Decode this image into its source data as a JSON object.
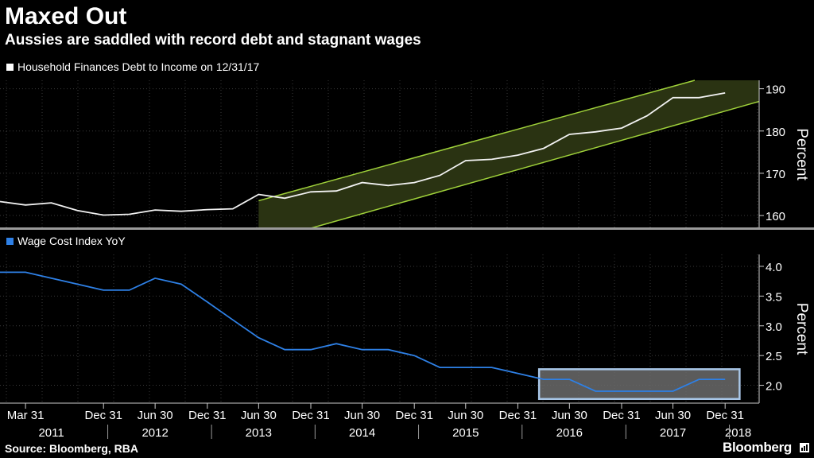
{
  "title": "Maxed Out",
  "subtitle": "Aussies are saddled with record debt and stagnant wages",
  "source": "Source: Bloomberg, RBA",
  "logo": "Bloomberg",
  "colors": {
    "background": "#000000",
    "debt_line": "#f2f2f2",
    "wage_line": "#2e80e6",
    "channel": "#9fd13a",
    "channel_fill": "#2a3312",
    "highlight_box": "#a9c7e8",
    "highlight_fill": "#6b6b6b",
    "grid": "#3a3a3a"
  },
  "x_axis": {
    "ticks": [
      {
        "date": "2011-03-31",
        "label": "Mar 31"
      },
      {
        "date": "2011-12-31",
        "label": "Dec 31"
      },
      {
        "date": "2012-06-30",
        "label": "Jun 30"
      },
      {
        "date": "2012-12-31",
        "label": "Dec 31"
      },
      {
        "date": "2013-06-30",
        "label": "Jun 30"
      },
      {
        "date": "2013-12-31",
        "label": "Dec 31"
      },
      {
        "date": "2014-06-30",
        "label": "Jun 30"
      },
      {
        "date": "2014-12-31",
        "label": "Dec 31"
      },
      {
        "date": "2015-06-30",
        "label": "Jun 30"
      },
      {
        "date": "2015-12-31",
        "label": "Dec 31"
      },
      {
        "date": "2016-06-30",
        "label": "Jun 30"
      },
      {
        "date": "2016-12-31",
        "label": "Dec 31"
      },
      {
        "date": "2017-06-30",
        "label": "Jun 30"
      },
      {
        "date": "2017-12-31",
        "label": "Dec 31"
      }
    ],
    "years": [
      {
        "date": "2011-06-30",
        "label": "2011"
      },
      {
        "date": "2012-06-30",
        "label": "2012"
      },
      {
        "date": "2013-06-30",
        "label": "2013"
      },
      {
        "date": "2014-06-30",
        "label": "2014"
      },
      {
        "date": "2015-06-30",
        "label": "2015"
      },
      {
        "date": "2016-06-30",
        "label": "2016"
      },
      {
        "date": "2017-06-30",
        "label": "2017"
      },
      {
        "date": "2018-02-15",
        "label": "2018"
      }
    ],
    "range": [
      "2010-12-31",
      "2018-04-30"
    ]
  },
  "chart_data": [
    {
      "type": "line",
      "legend": "Household Finances Debt to Income on 12/31/17",
      "ylabel": "Percent",
      "ylim": [
        157,
        192
      ],
      "yticks": [
        160,
        170,
        180,
        190
      ],
      "x": [
        "2010-12-31",
        "2011-03-31",
        "2011-06-30",
        "2011-09-30",
        "2011-12-31",
        "2012-03-31",
        "2012-06-30",
        "2012-09-30",
        "2012-12-31",
        "2013-03-31",
        "2013-06-30",
        "2013-09-30",
        "2013-12-31",
        "2014-03-31",
        "2014-06-30",
        "2014-09-30",
        "2014-12-31",
        "2015-03-31",
        "2015-06-30",
        "2015-09-30",
        "2015-12-31",
        "2016-03-31",
        "2016-06-30",
        "2016-09-30",
        "2016-12-31",
        "2017-03-31",
        "2017-06-30",
        "2017-09-30"
      ],
      "values": [
        163.3,
        162.5,
        163.0,
        161.2,
        160.1,
        160.3,
        161.3,
        161.0,
        161.4,
        161.6,
        165.0,
        164.1,
        165.6,
        165.8,
        167.8,
        167.1,
        167.8,
        169.5,
        173.0,
        173.3,
        174.3,
        175.9,
        179.2,
        179.8,
        180.7,
        183.6,
        187.9,
        187.9
      ],
      "last_point": {
        "x": "2017-12-31",
        "y": 189.0
      },
      "channel": {
        "upper": [
          {
            "x": "2013-06-30",
            "y": 163.5
          },
          {
            "x": "2017-09-15",
            "y": 192
          }
        ],
        "lower": [
          {
            "x": "2013-12-31",
            "y": 157
          },
          {
            "x": "2018-04-30",
            "y": 187.0
          }
        ],
        "shade_start": "2013-06-30"
      }
    },
    {
      "type": "line",
      "legend": "Wage Cost Index YoY",
      "ylabel": "Percent",
      "ylim": [
        1.7,
        4.2
      ],
      "yticks": [
        "4.0",
        "3.5",
        "3.0",
        "2.5",
        "2.0"
      ],
      "x": [
        "2010-12-31",
        "2011-03-31",
        "2011-06-30",
        "2011-09-30",
        "2011-12-31",
        "2012-03-31",
        "2012-06-30",
        "2012-09-30",
        "2012-12-31",
        "2013-03-31",
        "2013-06-30",
        "2013-09-30",
        "2013-12-31",
        "2014-03-31",
        "2014-06-30",
        "2014-09-30",
        "2014-12-31",
        "2015-03-31",
        "2015-06-30",
        "2015-09-30",
        "2015-12-31",
        "2016-03-31",
        "2016-06-30",
        "2016-09-30",
        "2016-12-31",
        "2017-03-31",
        "2017-06-30",
        "2017-09-30",
        "2017-12-31"
      ],
      "values": [
        3.9,
        3.9,
        3.8,
        3.7,
        3.6,
        3.6,
        3.8,
        3.7,
        3.4,
        3.1,
        2.8,
        2.6,
        2.6,
        2.7,
        2.6,
        2.6,
        2.5,
        2.3,
        2.3,
        2.3,
        2.2,
        2.1,
        2.1,
        1.9,
        1.9,
        1.9,
        1.9,
        2.1,
        2.1
      ],
      "highlight": {
        "x0": "2016-03-15",
        "x1": "2018-02-20",
        "y0": 1.77,
        "y1": 2.27
      }
    }
  ]
}
